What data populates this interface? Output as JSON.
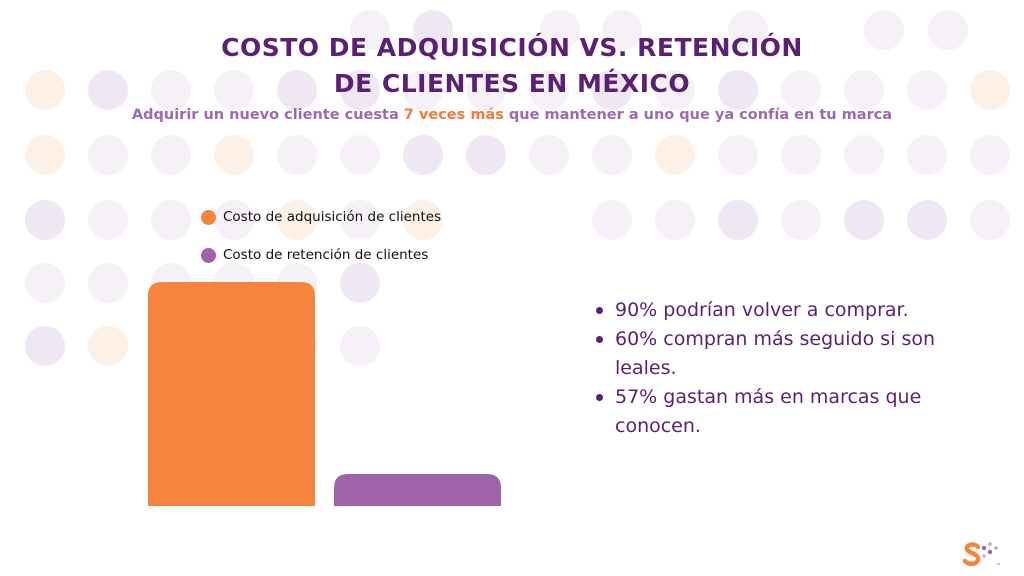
{
  "title": {
    "line1": "COSTO DE ADQUISICIÓN VS. RETENCIÓN",
    "line2": "DE CLIENTES EN MÉXICO"
  },
  "subtitle": {
    "before": "Adquirir un nuevo cliente cuesta ",
    "highlight": "7 veces más",
    "after": " que mantener a uno que ya confía en tu marca"
  },
  "colors": {
    "title": "#5b1f75",
    "subtitle": "#9b6ab0",
    "highlight": "#f07b3a",
    "acquisition": "#f7843d",
    "retention": "#9e63a8"
  },
  "chart_data": {
    "type": "bar",
    "categories": [
      "Costo de adquisición de clientes",
      "Costo de retención de clientes"
    ],
    "values": [
      7,
      1
    ],
    "legend": [
      "Costo de adquisición de clientes",
      "Costo de retención de clientes"
    ],
    "legend_position": "top-left",
    "ylim": [
      0,
      7
    ],
    "grid": false,
    "axes_visible": false
  },
  "bullets": [
    "90% podrían volver a comprar.",
    "60% compran más seguido si son leales.",
    "57% gastan más en marcas que conocen."
  ],
  "logo": {
    "icon": "dotted-s-logo-icon",
    "mark": "™"
  }
}
